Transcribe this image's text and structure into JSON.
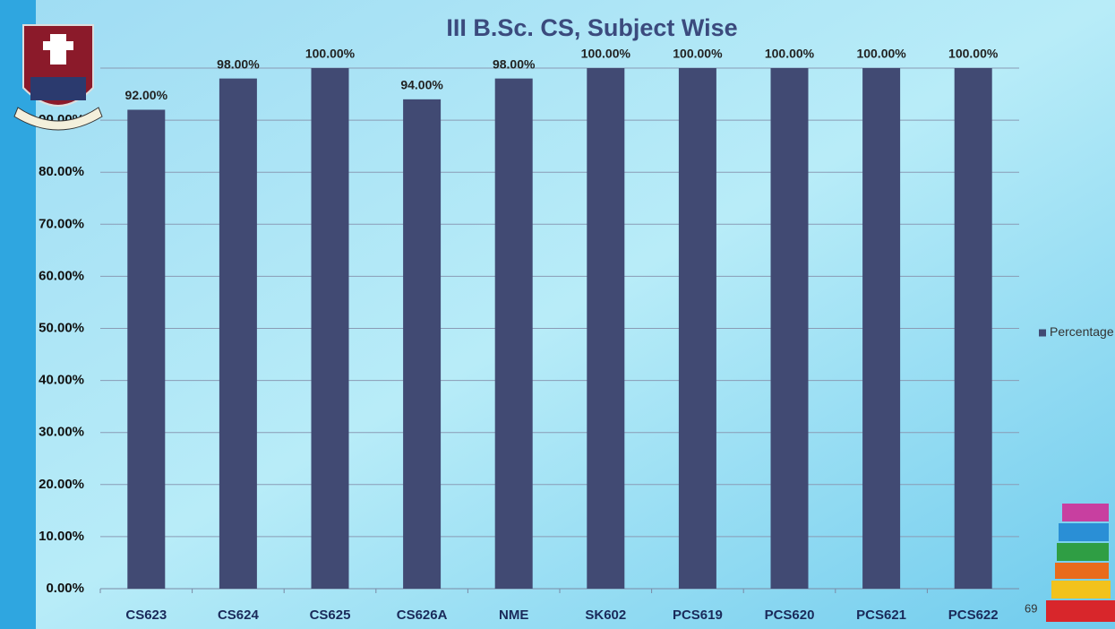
{
  "chart_data": {
    "type": "bar",
    "title": "III B.Sc. CS, Subject Wise",
    "categories": [
      "CS623",
      "CS624",
      "CS625",
      "CS626A",
      "NME",
      "SK602",
      "PCS619",
      "PCS620",
      "PCS621",
      "PCS622"
    ],
    "series": [
      {
        "name": "Percentage",
        "color": "#414a73",
        "values": [
          92,
          98,
          100,
          94,
          98,
          100,
          100,
          100,
          100,
          100
        ],
        "value_labels": [
          "92.00%",
          "98.00%",
          "100.00%",
          "94.00%",
          "98.00%",
          "100.00%",
          "100.00%",
          "100.00%",
          "100.00%",
          "100.00%"
        ]
      }
    ],
    "ylim": [
      0,
      100
    ],
    "yticks": [
      {
        "value": 0,
        "label": "0.00%"
      },
      {
        "value": 10,
        "label": "10.00%"
      },
      {
        "value": 20,
        "label": "20.00%"
      },
      {
        "value": 30,
        "label": "30.00%"
      },
      {
        "value": 40,
        "label": "40.00%"
      },
      {
        "value": 50,
        "label": "50.00%"
      },
      {
        "value": 60,
        "label": "60.00%"
      },
      {
        "value": 70,
        "label": "70.00%"
      },
      {
        "value": 80,
        "label": "80.00%"
      },
      {
        "value": 90,
        "label": "90.00%"
      },
      {
        "value": 100,
        "label": "100.00%"
      }
    ],
    "grid": true,
    "legend": "right",
    "page_number": "69"
  }
}
